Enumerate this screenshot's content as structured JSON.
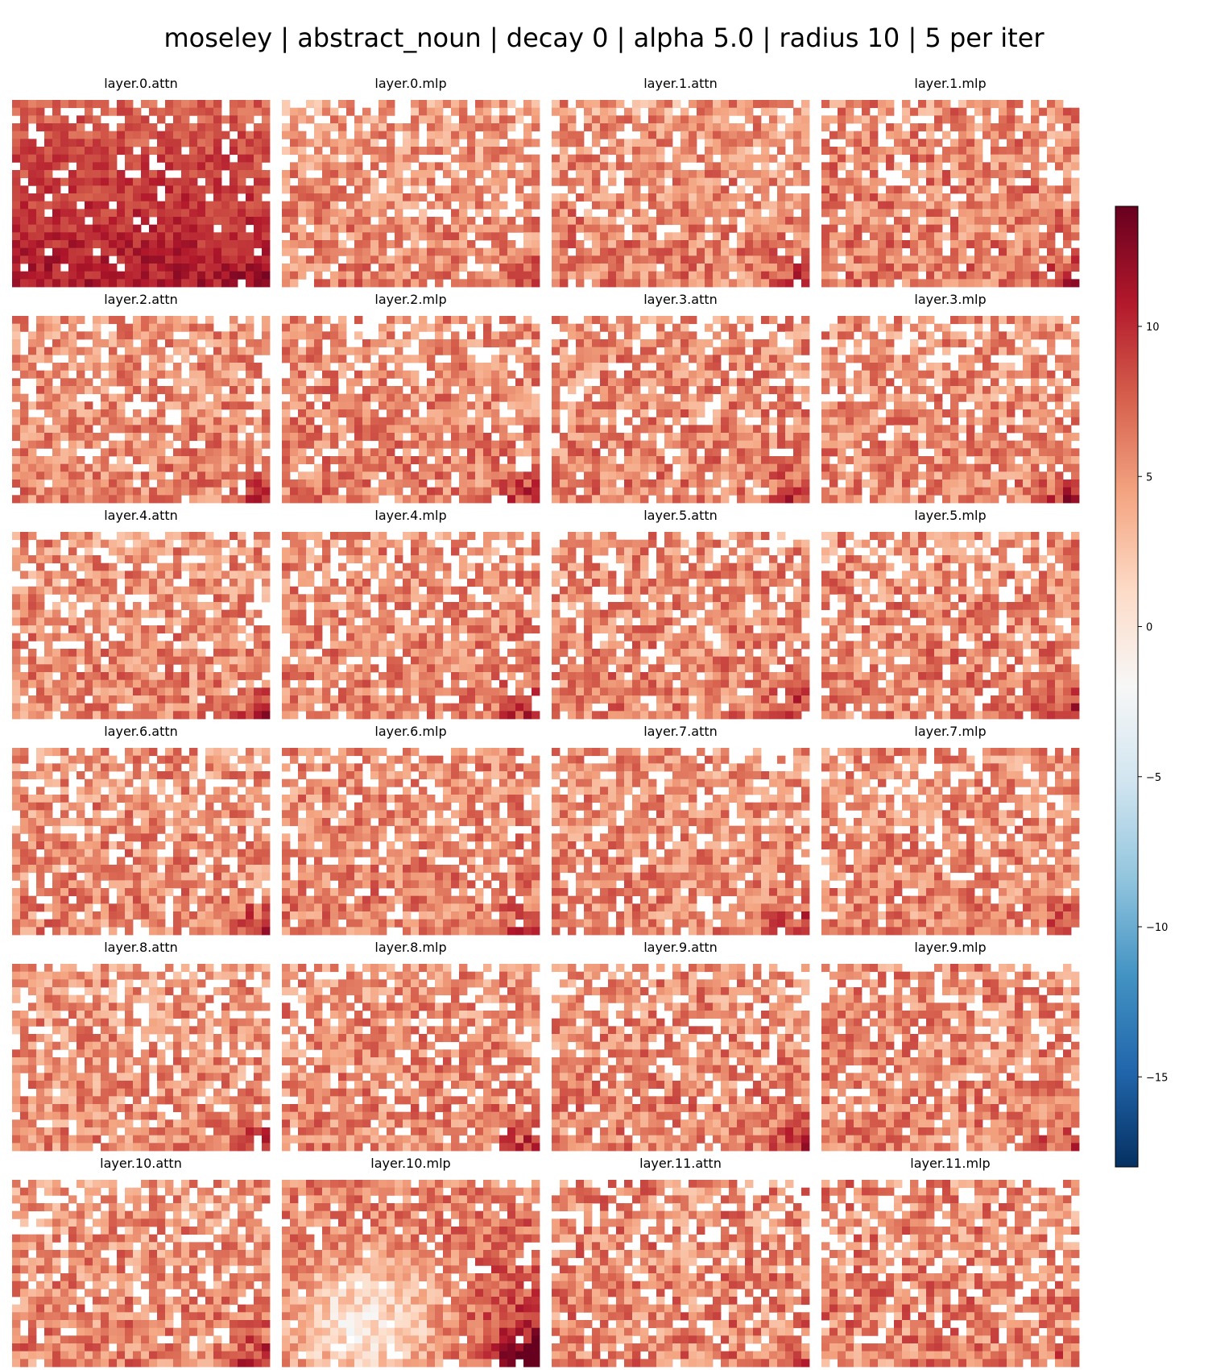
{
  "chart_data": {
    "type": "heatmap",
    "title": "moseley | abstract_noun | decay 0 | alpha 5.0 | radius 10 | 5 per iter",
    "grid_rows": 6,
    "grid_cols": 4,
    "cells_per_map": {
      "rows": 24,
      "cols": 32
    },
    "colormap": "RdBu_r",
    "colorbar": {
      "vmin": -18,
      "vmax": 14,
      "ticks": [
        10,
        5,
        0,
        -5,
        -10,
        -15
      ],
      "tick_labels": [
        "10",
        "5",
        "0",
        "−5",
        "−10",
        "−15"
      ]
    },
    "panels": [
      {
        "title": "layer.0.attn",
        "pattern": {
          "mean": 9.8,
          "spread": 1.6,
          "blank": 0.12,
          "grad": 1.5,
          "corner": 1.0,
          "light": 0.0
        }
      },
      {
        "title": "layer.0.mlp",
        "pattern": {
          "mean": 6.5,
          "spread": 2.6,
          "blank": 0.18,
          "grad": 0.5,
          "corner": 3.0,
          "light": 0.0
        }
      },
      {
        "title": "layer.1.attn",
        "pattern": {
          "mean": 6.6,
          "spread": 2.8,
          "blank": 0.2,
          "grad": 0.5,
          "corner": 3.5,
          "light": 0.0
        }
      },
      {
        "title": "layer.1.mlp",
        "pattern": {
          "mean": 7.0,
          "spread": 2.8,
          "blank": 0.2,
          "grad": 0.3,
          "corner": 3.5,
          "light": 0.0
        }
      },
      {
        "title": "layer.2.attn",
        "pattern": {
          "mean": 6.6,
          "spread": 2.6,
          "blank": 0.22,
          "grad": 0.3,
          "corner": 3.5,
          "light": 0.0
        }
      },
      {
        "title": "layer.2.mlp",
        "pattern": {
          "mean": 6.8,
          "spread": 2.6,
          "blank": 0.22,
          "grad": 0.3,
          "corner": 4.0,
          "light": 0.0
        }
      },
      {
        "title": "layer.3.attn",
        "pattern": {
          "mean": 6.8,
          "spread": 2.7,
          "blank": 0.22,
          "grad": 0.3,
          "corner": 4.0,
          "light": 0.0
        }
      },
      {
        "title": "layer.3.mlp",
        "pattern": {
          "mean": 6.6,
          "spread": 2.7,
          "blank": 0.2,
          "grad": 0.3,
          "corner": 4.5,
          "light": 0.0
        }
      },
      {
        "title": "layer.4.attn",
        "pattern": {
          "mean": 6.6,
          "spread": 2.7,
          "blank": 0.22,
          "grad": 0.2,
          "corner": 4.0,
          "light": 0.0
        }
      },
      {
        "title": "layer.4.mlp",
        "pattern": {
          "mean": 6.8,
          "spread": 2.6,
          "blank": 0.22,
          "grad": 0.3,
          "corner": 4.0,
          "light": 0.0
        }
      },
      {
        "title": "layer.5.attn",
        "pattern": {
          "mean": 6.8,
          "spread": 2.7,
          "blank": 0.22,
          "grad": 0.3,
          "corner": 4.0,
          "light": 0.0
        }
      },
      {
        "title": "layer.5.mlp",
        "pattern": {
          "mean": 6.8,
          "spread": 2.8,
          "blank": 0.22,
          "grad": 0.2,
          "corner": 3.5,
          "light": 0.0
        }
      },
      {
        "title": "layer.6.attn",
        "pattern": {
          "mean": 6.6,
          "spread": 2.7,
          "blank": 0.22,
          "grad": 0.2,
          "corner": 4.0,
          "light": 0.0
        }
      },
      {
        "title": "layer.6.mlp",
        "pattern": {
          "mean": 6.8,
          "spread": 2.6,
          "blank": 0.22,
          "grad": 0.2,
          "corner": 3.5,
          "light": 0.0
        }
      },
      {
        "title": "layer.7.attn",
        "pattern": {
          "mean": 6.6,
          "spread": 2.6,
          "blank": 0.2,
          "grad": 0.2,
          "corner": 4.0,
          "light": 0.0
        }
      },
      {
        "title": "layer.7.mlp",
        "pattern": {
          "mean": 6.6,
          "spread": 2.6,
          "blank": 0.2,
          "grad": 0.2,
          "corner": 4.0,
          "light": 0.0
        }
      },
      {
        "title": "layer.8.attn",
        "pattern": {
          "mean": 6.4,
          "spread": 2.7,
          "blank": 0.22,
          "grad": 0.2,
          "corner": 4.0,
          "light": 0.0
        }
      },
      {
        "title": "layer.8.mlp",
        "pattern": {
          "mean": 6.6,
          "spread": 2.7,
          "blank": 0.22,
          "grad": 0.3,
          "corner": 4.0,
          "light": 0.0
        }
      },
      {
        "title": "layer.9.attn",
        "pattern": {
          "mean": 6.8,
          "spread": 2.7,
          "blank": 0.22,
          "grad": 0.3,
          "corner": 3.5,
          "light": 0.0
        }
      },
      {
        "title": "layer.9.mlp",
        "pattern": {
          "mean": 6.8,
          "spread": 2.7,
          "blank": 0.22,
          "grad": 0.2,
          "corner": 3.5,
          "light": 0.0
        }
      },
      {
        "title": "layer.10.attn",
        "pattern": {
          "mean": 6.6,
          "spread": 2.8,
          "blank": 0.2,
          "grad": 0.5,
          "corner": 4.5,
          "light": 0.0
        }
      },
      {
        "title": "layer.10.mlp",
        "pattern": {
          "mean": 7.4,
          "spread": 2.4,
          "blank": 0.1,
          "grad": 0.4,
          "corner": 5.0,
          "light": 6.0
        }
      },
      {
        "title": "layer.11.attn",
        "pattern": {
          "mean": 6.8,
          "spread": 3.0,
          "blank": 0.24,
          "grad": 0.2,
          "corner": 2.0,
          "light": 0.0
        }
      },
      {
        "title": "layer.11.mlp",
        "pattern": {
          "mean": 6.8,
          "spread": 3.0,
          "blank": 0.24,
          "grad": 0.2,
          "corner": 2.0,
          "light": 0.0
        }
      }
    ]
  }
}
